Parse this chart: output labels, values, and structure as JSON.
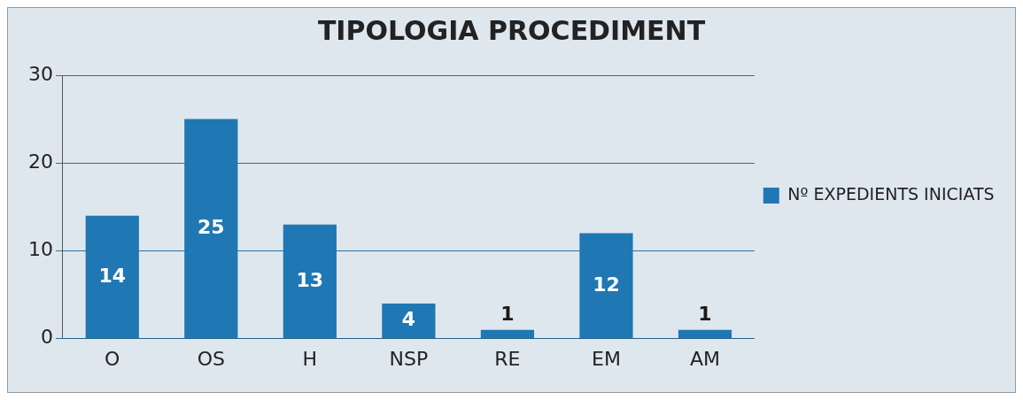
{
  "chart_data": {
    "type": "bar",
    "title": "TIPOLOGIA PROCEDIMENT",
    "categories": [
      "O",
      "OS",
      "H",
      "NSP",
      "RE",
      "EM",
      "AM"
    ],
    "series": [
      {
        "name": "Nº EXPEDIENTS INICIATS",
        "color": "#1f78b4",
        "values": [
          14,
          25,
          13,
          4,
          1,
          12,
          1
        ]
      }
    ],
    "ylim": [
      0,
      30
    ],
    "yticks": [
      0,
      10,
      20,
      30
    ],
    "grid": "y",
    "legend": "right",
    "data_labels": true
  }
}
